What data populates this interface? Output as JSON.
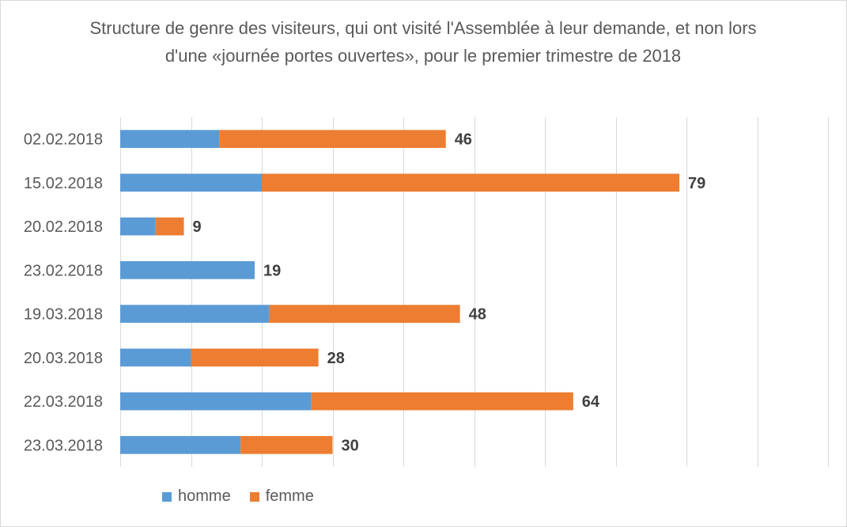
{
  "chart_data": {
    "type": "bar",
    "orientation": "horizontal",
    "stacked": true,
    "title": "Structure de genre des visiteurs, qui ont visité l'Assemblée à leur demande, et non lors d'une «journée portes ouvertes», pour le premier trimestre de 2018",
    "categories": [
      "02.02.2018",
      "15.02.2018",
      "20.02.2018",
      "23.02.2018",
      "19.03.2018",
      "20.03.2018",
      "22.03.2018",
      "23.03.2018"
    ],
    "series": [
      {
        "name": "homme",
        "color": "#5b9bd5",
        "values": [
          14,
          20,
          5,
          19,
          21,
          10,
          27,
          17
        ]
      },
      {
        "name": "femme",
        "color": "#ed7d31",
        "values": [
          32,
          59,
          4,
          0,
          27,
          18,
          37,
          13
        ]
      }
    ],
    "totals": [
      "46",
      "79",
      "9",
      "19",
      "48",
      "28",
      "64",
      "30"
    ],
    "xlim": [
      0,
      100
    ],
    "grid": "vertical",
    "legend": "bottom-left"
  }
}
